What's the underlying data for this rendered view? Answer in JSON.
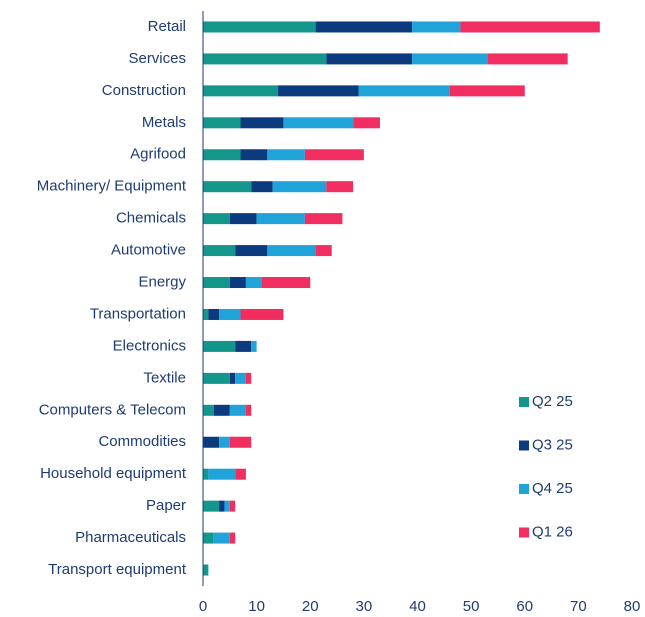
{
  "chart_data": {
    "type": "stacked_barh",
    "categories": [
      "Retail",
      "Services",
      "Construction",
      "Metals",
      "Agrifood",
      "Machinery/ Equipment",
      "Chemicals",
      "Automotive",
      "Energy",
      "Transportation",
      "Electronics",
      "Textile",
      "Computers & Telecom",
      "Commodities",
      "Household equipment",
      "Paper",
      "Pharmaceuticals",
      "Transport equipment"
    ],
    "series": [
      {
        "name": "Q2 25",
        "color": "#13968c",
        "values": [
          21,
          23,
          14,
          7,
          7,
          9,
          5,
          6,
          5,
          1,
          6,
          5,
          2,
          0,
          1,
          3,
          2,
          1
        ]
      },
      {
        "name": "Q3 25",
        "color": "#0b3a7e",
        "values": [
          18,
          16,
          15,
          8,
          5,
          4,
          5,
          6,
          3,
          2,
          3,
          1,
          3,
          3,
          0,
          1,
          0,
          0
        ]
      },
      {
        "name": "Q4 25",
        "color": "#1fa3d8",
        "values": [
          9,
          14,
          17,
          13,
          7,
          10,
          9,
          9,
          3,
          4,
          1,
          2,
          3,
          2,
          5,
          1,
          3,
          0
        ]
      },
      {
        "name": "Q1 26",
        "color": "#f22d60",
        "values": [
          26,
          15,
          14,
          5,
          11,
          5,
          7,
          3,
          9,
          8,
          0,
          1,
          1,
          4,
          2,
          1,
          1,
          0
        ]
      }
    ],
    "xlim": [
      0,
      80
    ],
    "xticks": [
      0,
      10,
      20,
      30,
      40,
      50,
      60,
      70,
      80
    ],
    "legend": "center-right",
    "grid": false
  }
}
